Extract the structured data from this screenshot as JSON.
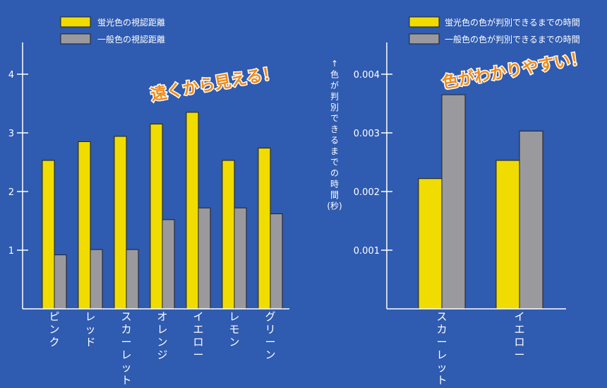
{
  "colors": {
    "background": "#2f5bb0",
    "fluorescent": "#f0dc00",
    "normal": "#9a9a9e",
    "axis": "#ffffff",
    "callout": "#f08c1a",
    "bar_outline": "#222222"
  },
  "chart_data": [
    {
      "type": "bar",
      "title": "",
      "xlabel": "",
      "ylabel": "",
      "ylim": [
        0,
        4.3
      ],
      "yticks": [
        1,
        2,
        3,
        4
      ],
      "ytick_labels": [
        "1",
        "2",
        "3",
        "4"
      ],
      "categories": [
        "ピンク",
        "レッド",
        "スカーレット",
        "オレンジ",
        "イエロー",
        "レモン",
        "グリーン"
      ],
      "series": [
        {
          "name": "蛍光色の視認距離",
          "values": [
            2.53,
            2.85,
            2.94,
            3.15,
            3.35,
            2.53,
            2.74
          ]
        },
        {
          "name": "一般色の視認距離",
          "values": [
            0.92,
            1.01,
            1.01,
            1.52,
            1.72,
            1.72,
            1.62
          ]
        }
      ],
      "legend": [
        "蛍光色の視認距離",
        "一般色の視認距離"
      ],
      "legend_position": "top-left",
      "annotation": "遠くから見える！",
      "grid": false
    },
    {
      "type": "bar",
      "title": "",
      "xlabel": "",
      "ylabel": "↑色が判別できるまでの時間(秒)",
      "ylim": [
        0,
        0.0043
      ],
      "yticks": [
        0.001,
        0.002,
        0.003,
        0.004
      ],
      "ytick_labels": [
        "0.001",
        "0.002",
        "0.003",
        "0.004"
      ],
      "categories": [
        "スカーレット",
        "イエロー"
      ],
      "series": [
        {
          "name": "蛍光色の色が判別できるまでの時間",
          "values": [
            0.00222,
            0.00253
          ]
        },
        {
          "name": "一般色の色が判別できるまでの時間",
          "values": [
            0.00365,
            0.00303
          ]
        }
      ],
      "legend": [
        "蛍光色の色が判別できるまでの時間",
        "一般色の色が判別できるまでの時間"
      ],
      "legend_position": "top-right",
      "annotation": "色がわかりやすい！",
      "grid": false
    }
  ]
}
